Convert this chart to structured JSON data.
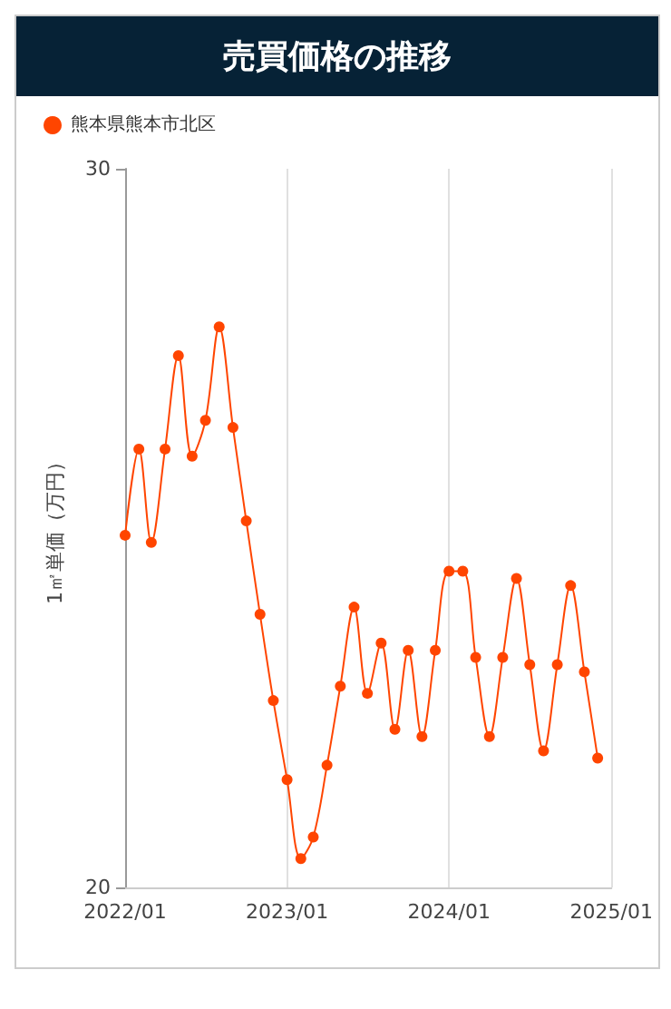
{
  "chart_data": {
    "type": "line",
    "title": "売買価格の推移",
    "ylabel": "1㎡単価（万円）",
    "x": [
      "2022-01",
      "2022-02",
      "2022-03",
      "2022-04",
      "2022-05",
      "2022-06",
      "2022-07",
      "2022-08",
      "2022-09",
      "2022-10",
      "2022-11",
      "2022-12",
      "2023-01",
      "2023-02",
      "2023-03",
      "2023-04",
      "2023-05",
      "2023-06",
      "2023-07",
      "2023-08",
      "2023-09",
      "2023-10",
      "2023-11",
      "2023-12",
      "2024-01",
      "2024-02",
      "2024-03",
      "2024-04",
      "2024-05",
      "2024-06",
      "2024-07",
      "2024-08",
      "2024-09",
      "2024-10",
      "2024-11",
      "2024-12"
    ],
    "series": [
      {
        "name": "熊本県熊本市北区",
        "color": "#ff4500",
        "values": [
          24.9,
          26.1,
          24.8,
          26.1,
          27.4,
          26.0,
          26.5,
          27.8,
          26.4,
          25.1,
          23.8,
          22.6,
          21.5,
          20.4,
          20.7,
          21.7,
          22.8,
          23.9,
          22.7,
          23.4,
          22.2,
          23.3,
          22.1,
          23.3,
          24.4,
          24.4,
          23.2,
          22.1,
          23.2,
          24.3,
          23.1,
          21.9,
          23.1,
          24.2,
          23.0,
          21.8
        ]
      }
    ],
    "xlim": [
      "2022-01",
      "2025-01"
    ],
    "xticks": [
      {
        "value": "2022-01",
        "label": "2022/01"
      },
      {
        "value": "2023-01",
        "label": "2023/01"
      },
      {
        "value": "2024-01",
        "label": "2024/01"
      },
      {
        "value": "2025-01",
        "label": "2025/01"
      }
    ],
    "ylim": [
      20,
      30
    ],
    "yticks": [
      20,
      30
    ],
    "grid": "x",
    "legend": "top left",
    "marker": "circle",
    "line_style": "solid"
  }
}
